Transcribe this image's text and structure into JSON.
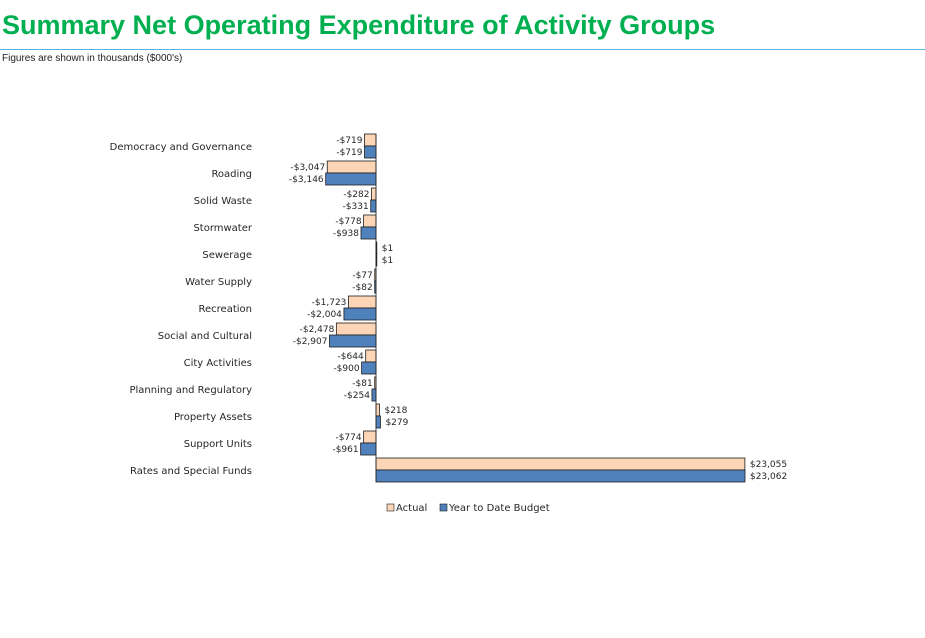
{
  "header": {
    "title": "Summary Net Operating Expenditure of Activity Groups",
    "subtitle": "Figures are shown in thousands ($000's)"
  },
  "colors": {
    "title": "#00b050",
    "rule": "#55b6e6",
    "actual_fill": "#fbd5b5",
    "budget_fill": "#4f81bd",
    "bar_outline": "#1f1f1f"
  },
  "chart_data": {
    "type": "bar",
    "orientation": "horizontal",
    "categories": [
      "Democracy and Governance",
      "Roading",
      "Solid Waste",
      "Stormwater",
      "Sewerage",
      "Water Supply",
      "Recreation",
      "Social and Cultural",
      "City Activities",
      "Planning and Regulatory",
      "Property Assets",
      "Support Units",
      "Rates and Special Funds"
    ],
    "series": [
      {
        "name": "Actual",
        "color": "#fbd5b5",
        "values": [
          -719,
          -3047,
          -282,
          -778,
          1,
          -77,
          -1723,
          -2478,
          -644,
          -81,
          218,
          -774,
          23055
        ],
        "labels": [
          "-$719",
          "-$3,047",
          "-$282",
          "-$778",
          "$1",
          "-$77",
          "-$1,723",
          "-$2,478",
          "-$644",
          "-$81",
          "$218",
          "-$774",
          "$23,055"
        ]
      },
      {
        "name": "Year to Date Budget",
        "color": "#4f81bd",
        "values": [
          -719,
          -3146,
          -331,
          -938,
          1,
          -82,
          -2004,
          -2907,
          -900,
          -254,
          279,
          -961,
          23062
        ],
        "labels": [
          "-$719",
          "-$3,146",
          "-$331",
          "-$938",
          "$1",
          "-$82",
          "-$2,004",
          "-$2,907",
          "-$900",
          "-$254",
          "$279",
          "-$961",
          "$23,062"
        ]
      }
    ],
    "xlim": [
      -3146,
      23062
    ],
    "grid": false,
    "legend_position": "bottom"
  }
}
